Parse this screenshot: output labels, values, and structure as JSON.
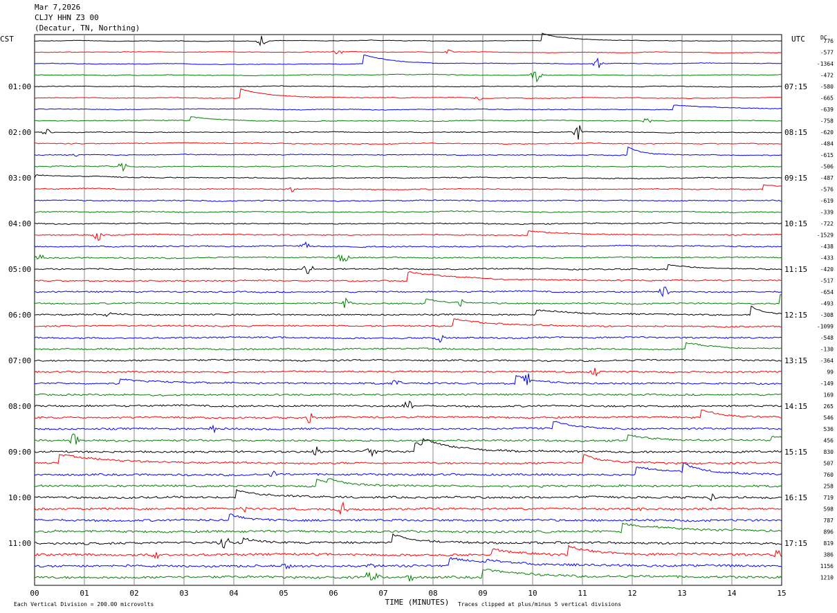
{
  "header": {
    "date": "Mar 7,2026",
    "station": "CLJY HHN Z3 00",
    "location": "(Decatur, TN, Northing)"
  },
  "chart_data": {
    "type": "line",
    "title": "CLJY HHN Z3 00",
    "xlabel": "TIME (MINUTES)",
    "x_ticks": [
      "00",
      "01",
      "02",
      "03",
      "04",
      "05",
      "06",
      "07",
      "08",
      "09",
      "10",
      "11",
      "12",
      "13",
      "14",
      "15"
    ],
    "xlim": [
      0,
      15
    ],
    "left_axis_label": "CST",
    "right_axis_label": "UTC",
    "dc_label": "DC",
    "left_time_labels": [
      "01:00",
      "02:00",
      "03:00",
      "04:00",
      "05:00",
      "06:00",
      "07:00",
      "08:00",
      "09:00",
      "10:00",
      "11:00"
    ],
    "right_time_labels": [
      "07:15",
      "08:15",
      "09:15",
      "10:15",
      "11:15",
      "12:15",
      "13:15",
      "14:15",
      "15:15",
      "16:15",
      "17:15"
    ],
    "trace_colors": [
      "#000000",
      "#ff0000",
      "#0000ff",
      "#008000"
    ],
    "dc_offsets": [
      "776",
      "-577",
      "-1364",
      "-472",
      "-580",
      "-665",
      "-639",
      "-758",
      "-620",
      "-484",
      "-615",
      "-506",
      "-487",
      "-576",
      "-619",
      "-339",
      "-722",
      "-1529",
      "-438",
      "-433",
      "-420",
      "-517",
      "-654",
      "-493",
      "-308",
      "-1099",
      "-548",
      "-130",
      "-364",
      "99",
      "-149",
      "169",
      "265",
      "546",
      "536",
      "456",
      "830",
      "507",
      "760",
      "258",
      "719",
      "598",
      "787",
      "896",
      "819",
      "386",
      "1156",
      "1210"
    ],
    "footer_left": "Each Vertical Division =  200.00 microvolts",
    "footer_right": "Traces clipped at plus/minus 5 vertical divisions",
    "grid": true
  }
}
